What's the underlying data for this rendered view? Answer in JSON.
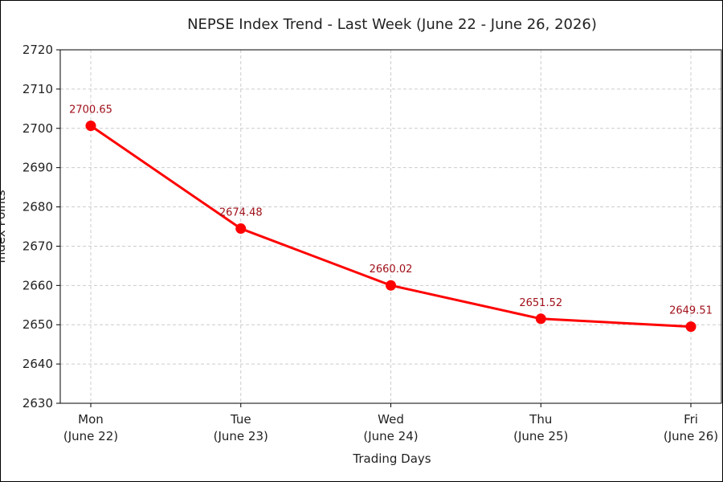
{
  "chart_data": {
    "type": "line",
    "title": "NEPSE Index Trend - Last Week (June 22 - June 26, 2026)",
    "xlabel": "Trading Days",
    "ylabel": "Index Points",
    "categories": [
      [
        "Mon",
        "(June 22)"
      ],
      [
        "Tue",
        "(June 23)"
      ],
      [
        "Wed",
        "(June 24)"
      ],
      [
        "Thu",
        "(June 25)"
      ],
      [
        "Fri",
        "(June 26)"
      ]
    ],
    "series": [
      {
        "values": [
          2700.65,
          2674.48,
          2660.02,
          2651.52,
          2649.51
        ],
        "data_labels": [
          "2700.65",
          "2674.48",
          "2660.02",
          "2651.52",
          "2649.51"
        ],
        "color": "#ff0000",
        "label_color": "#a0101a"
      }
    ],
    "ylim": [
      2630,
      2720
    ],
    "yticks": [
      "2630",
      "2640",
      "2650",
      "2660",
      "2670",
      "2680",
      "2690",
      "2700",
      "2710",
      "2720"
    ],
    "grid": true
  }
}
